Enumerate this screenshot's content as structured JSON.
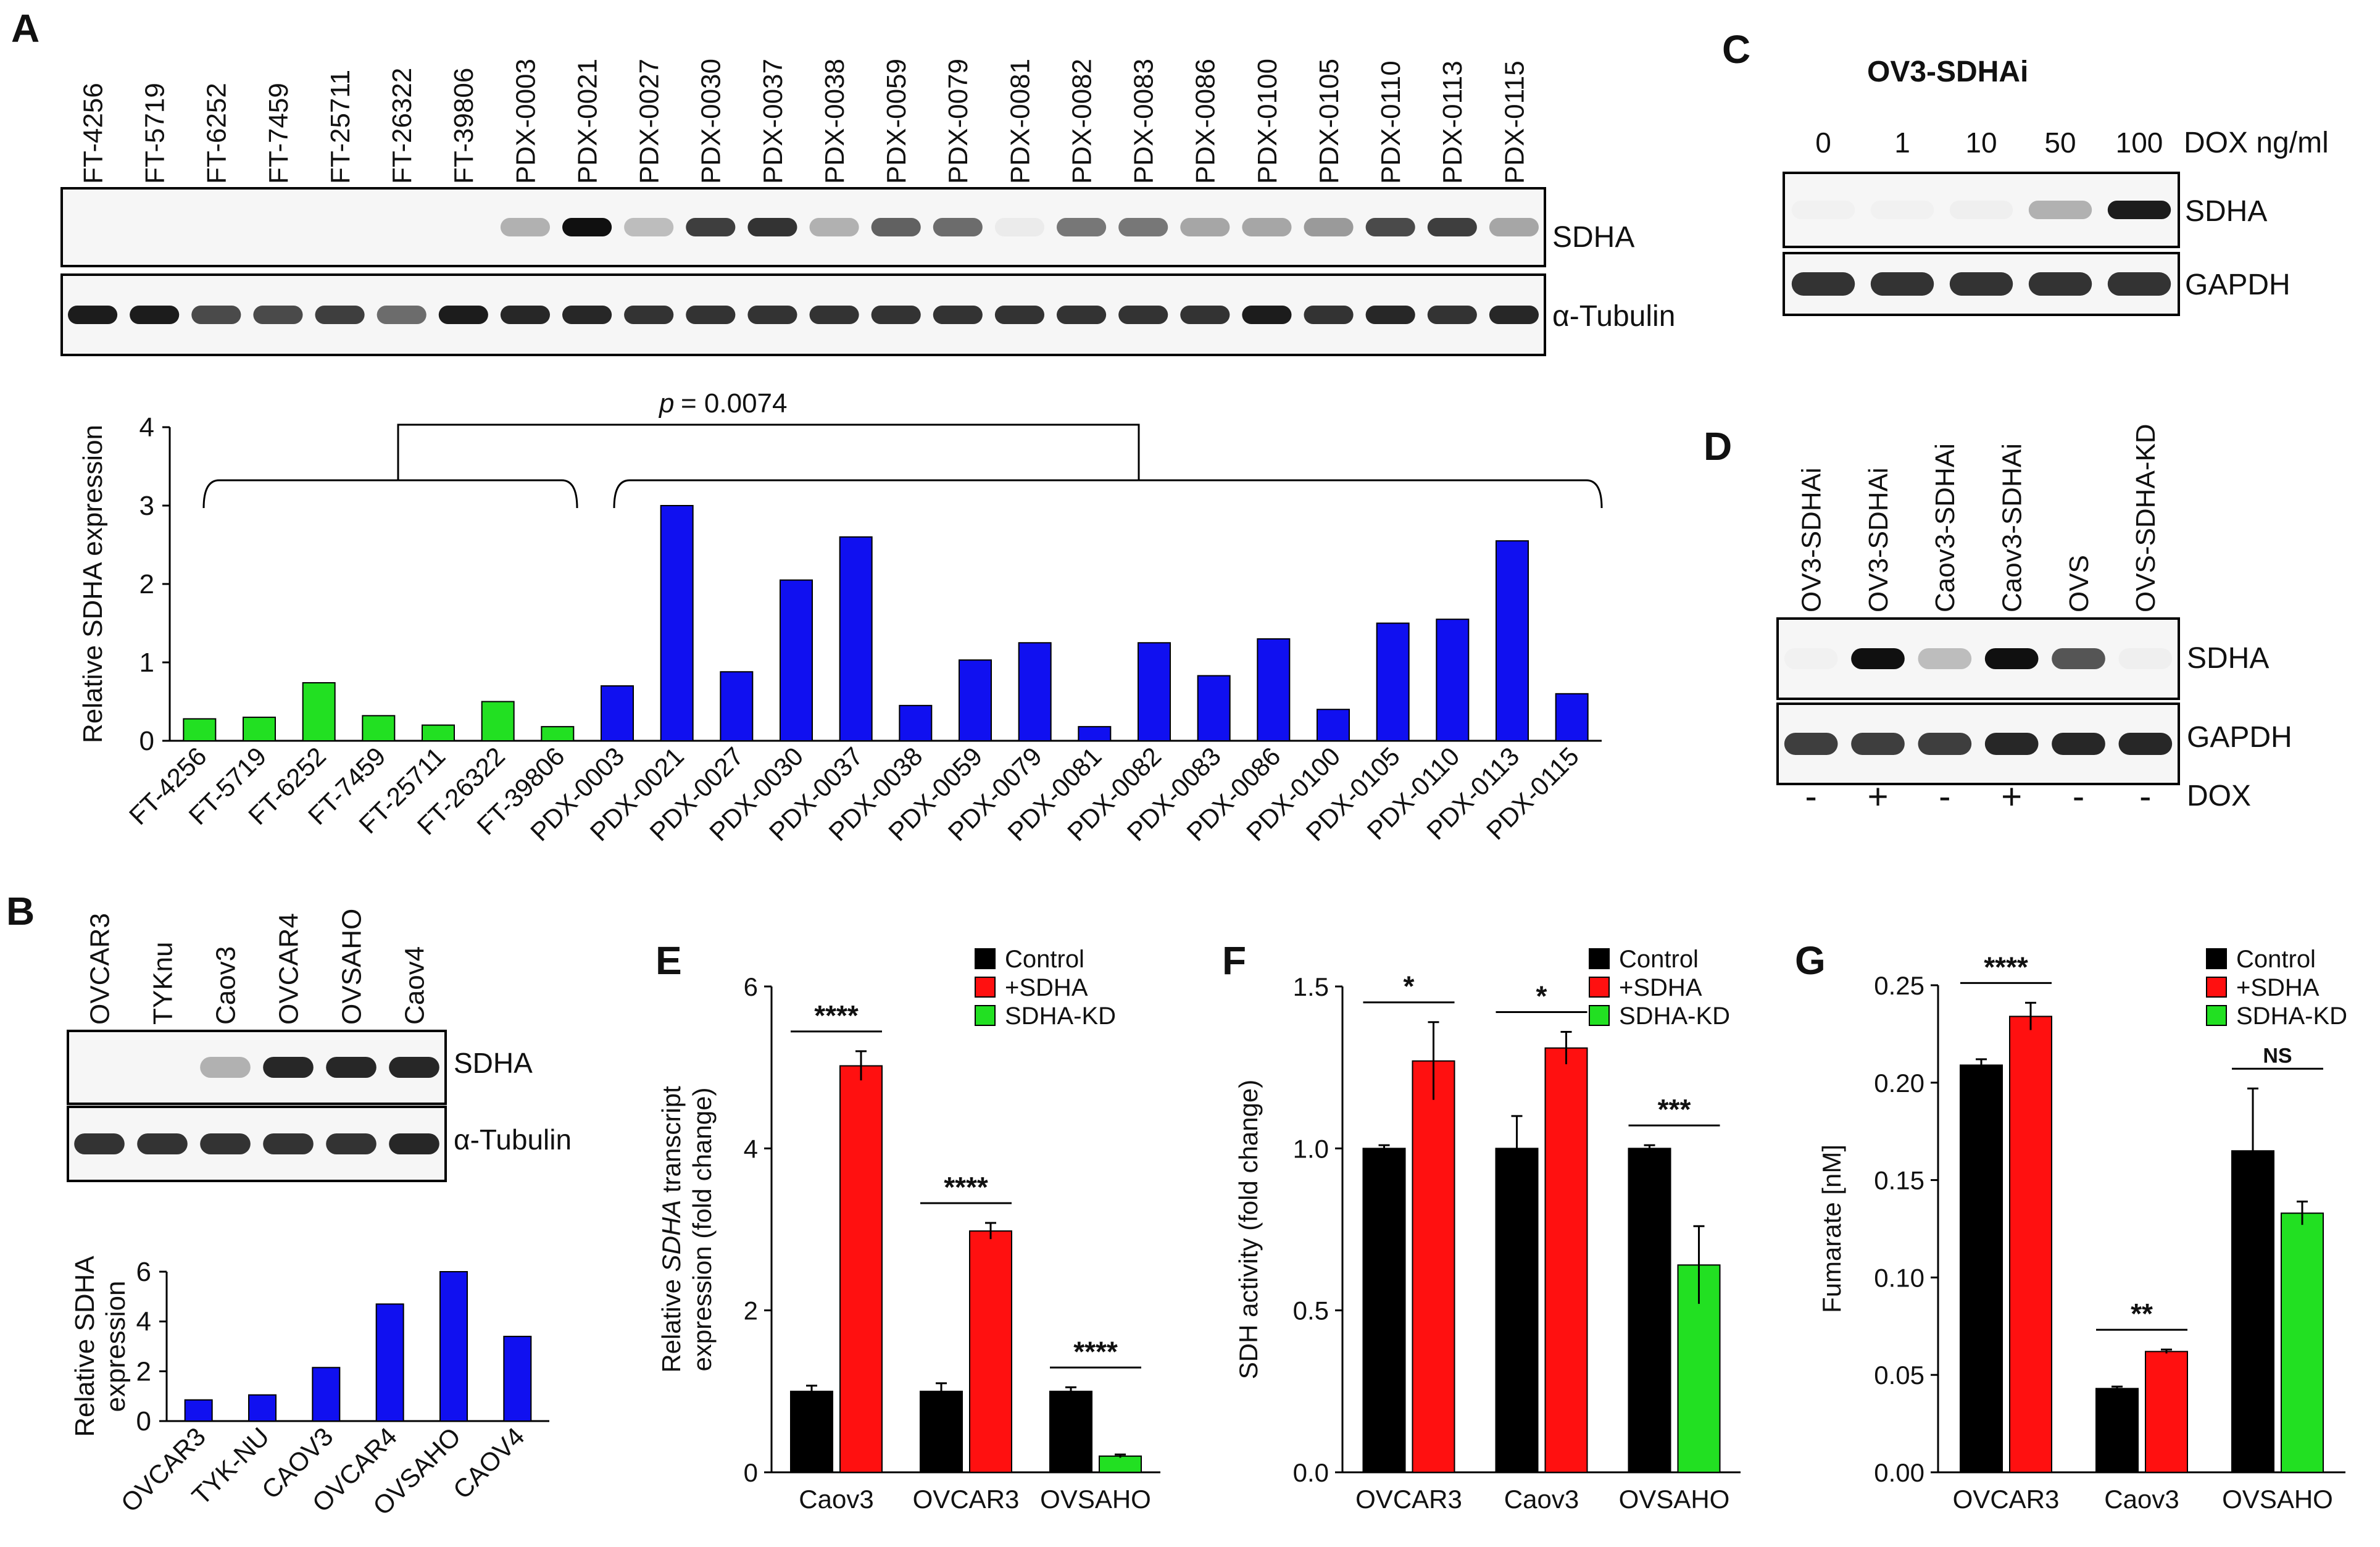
{
  "panel_letters": [
    "A",
    "B",
    "C",
    "D",
    "E",
    "F",
    "G"
  ],
  "colors": {
    "green": "#22e022",
    "blue": "#1010f0",
    "black": "#000000",
    "red": "#ff1010",
    "band_dark": "#111111",
    "blot_bg": "#f6f6f6"
  },
  "panelA": {
    "lanes": [
      "FT-4256",
      "FT-5719",
      "FT-6252",
      "FT-7459",
      "FT-25711",
      "FT-26322",
      "FT-39806",
      "PDX-0003",
      "PDX-0021",
      "PDX-0027",
      "PDX-0030",
      "PDX-0037",
      "PDX-0038",
      "PDX-0059",
      "PDX-0079",
      "PDX-0081",
      "PDX-0082",
      "PDX-0083",
      "PDX-0086",
      "PDX-0100",
      "PDX-0105",
      "PDX-0110",
      "PDX-0113",
      "PDX-0115"
    ],
    "blot_labels": [
      "SDHA",
      "α-Tubulin"
    ],
    "sdha_band": [
      0,
      0,
      0,
      0,
      0,
      0,
      0,
      0.3,
      1.0,
      0.25,
      0.8,
      0.85,
      0.3,
      0.65,
      0.6,
      0.05,
      0.55,
      0.55,
      0.35,
      0.35,
      0.4,
      0.75,
      0.8,
      0.35
    ],
    "tubulin_band": [
      0.95,
      0.95,
      0.75,
      0.75,
      0.8,
      0.6,
      0.95,
      0.9,
      0.9,
      0.85,
      0.85,
      0.85,
      0.85,
      0.85,
      0.85,
      0.85,
      0.85,
      0.85,
      0.85,
      0.95,
      0.85,
      0.9,
      0.85,
      0.9
    ],
    "p_label": "p",
    "p_value": "= 0.0074"
  },
  "panelC": {
    "title": "OV3-SDHAi",
    "doses": [
      "0",
      "1",
      "10",
      "50",
      "100"
    ],
    "dose_unit": "DOX ng/ml",
    "blot_labels": [
      "SDHA",
      "GAPDH"
    ],
    "sdha_band": [
      0.02,
      0.02,
      0.03,
      0.3,
      0.95
    ],
    "gapdh_band": [
      0.85,
      0.85,
      0.85,
      0.85,
      0.85
    ]
  },
  "panelD": {
    "lanes": [
      "OV3-SDHAi",
      "OV3-SDHAi",
      "Caov3-SDHAi",
      "Caov3-SDHAi",
      "OVS",
      "OVS-SDHA-KD"
    ],
    "blot_labels": [
      "SDHA",
      "GAPDH"
    ],
    "dox": [
      "-",
      "+",
      "-",
      "+",
      "-",
      "-"
    ],
    "dox_label": "DOX",
    "sdha_band": [
      0.02,
      1.0,
      0.25,
      1.0,
      0.7,
      0.03
    ],
    "gapdh_band": [
      0.8,
      0.8,
      0.8,
      0.9,
      0.9,
      0.9
    ]
  },
  "panelB": {
    "lanes": [
      "OVCAR3",
      "TYKnu",
      "Caov3",
      "OVCAR4",
      "OVSAHO",
      "Caov4"
    ],
    "blot_labels": [
      "SDHA",
      "α-Tubulin"
    ],
    "sdha_band": [
      0.0,
      0.0,
      0.3,
      0.9,
      0.9,
      0.9
    ],
    "tubulin_band": [
      0.85,
      0.85,
      0.85,
      0.85,
      0.85,
      0.9
    ]
  },
  "chart_data": [
    {
      "id": "A",
      "type": "bar",
      "categories": [
        "FT-4256",
        "FT-5719",
        "FT-6252",
        "FT-7459",
        "FT-25711",
        "FT-26322",
        "FT-39806",
        "PDX-0003",
        "PDX-0021",
        "PDX-0027",
        "PDX-0030",
        "PDX-0037",
        "PDX-0038",
        "PDX-0059",
        "PDX-0079",
        "PDX-0081",
        "PDX-0082",
        "PDX-0083",
        "PDX-0086",
        "PDX-0100",
        "PDX-0105",
        "PDX-0110",
        "PDX-0113",
        "PDX-0115"
      ],
      "values": [
        0.28,
        0.3,
        0.74,
        0.32,
        0.2,
        0.5,
        0.18,
        0.7,
        3.0,
        0.88,
        2.05,
        2.6,
        0.45,
        1.03,
        1.25,
        0.18,
        1.25,
        0.83,
        1.3,
        0.4,
        1.5,
        1.55,
        2.55,
        0.6
      ],
      "groups": [
        7,
        17
      ],
      "ylabel": "Relative SDHA expression",
      "ylim": [
        0,
        4
      ],
      "yticks": [
        "0",
        "1",
        "2",
        "3",
        "4"
      ]
    },
    {
      "id": "B",
      "type": "bar",
      "categories": [
        "OVCAR3",
        "TYK-NU",
        "CAOV3",
        "OVCAR4",
        "OVSAHO",
        "CAOV4"
      ],
      "values": [
        0.85,
        1.05,
        2.15,
        4.7,
        6.0,
        3.4
      ],
      "ylabel": [
        "Relative SDHA",
        "expression"
      ],
      "ylim": [
        0,
        6
      ],
      "yticks": [
        "0",
        "2",
        "4",
        "6"
      ]
    },
    {
      "id": "E",
      "type": "bar",
      "categories": [
        "Caov3",
        "OVCAR3",
        "OVSAHO"
      ],
      "legend": [
        "Control",
        "+SDHA",
        "SDHA-KD"
      ],
      "groups": [
        {
          "bars": [
            {
              "s": 0,
              "v": 1.0,
              "e": 0.07
            },
            {
              "s": 1,
              "v": 5.02,
              "e": 0.18
            }
          ],
          "sig": "****"
        },
        {
          "bars": [
            {
              "s": 0,
              "v": 1.0,
              "e": 0.1
            },
            {
              "s": 1,
              "v": 2.98,
              "e": 0.1
            }
          ],
          "sig": "****"
        },
        {
          "bars": [
            {
              "s": 0,
              "v": 1.0,
              "e": 0.05
            },
            {
              "s": 2,
              "v": 0.2,
              "e": 0.02
            }
          ],
          "sig": "****"
        }
      ],
      "ylabel_parts": [
        "Relative ",
        "SDHA",
        " transcript",
        "expression (fold change)"
      ],
      "ylim": [
        0,
        6
      ],
      "yticks": [
        "0",
        "2",
        "4",
        "6"
      ]
    },
    {
      "id": "F",
      "type": "bar",
      "categories": [
        "OVCAR3",
        "Caov3",
        "OVSAHO"
      ],
      "legend": [
        "Control",
        "+SDHA",
        "SDHA-KD"
      ],
      "groups": [
        {
          "bars": [
            {
              "s": 0,
              "v": 1.0,
              "e": 0.01
            },
            {
              "s": 1,
              "v": 1.27,
              "e": 0.12
            }
          ],
          "sig": "*"
        },
        {
          "bars": [
            {
              "s": 0,
              "v": 1.0,
              "e": 0.1
            },
            {
              "s": 1,
              "v": 1.31,
              "e": 0.05
            }
          ],
          "sig": "*"
        },
        {
          "bars": [
            {
              "s": 0,
              "v": 1.0,
              "e": 0.01
            },
            {
              "s": 2,
              "v": 0.64,
              "e": 0.12
            }
          ],
          "sig": "***"
        }
      ],
      "ylabel": "SDH activity (fold change)",
      "ylim": [
        0,
        1.5
      ],
      "yticks": [
        "0.0",
        "0.5",
        "1.0",
        "1.5"
      ]
    },
    {
      "id": "G",
      "type": "bar",
      "categories": [
        "OVCAR3",
        "Caov3",
        "OVSAHO"
      ],
      "legend": [
        "Control",
        "+SDHA",
        "SDHA-KD"
      ],
      "groups": [
        {
          "bars": [
            {
              "s": 0,
              "v": 0.209,
              "e": 0.003
            },
            {
              "s": 1,
              "v": 0.234,
              "e": 0.007
            }
          ],
          "sig": "****"
        },
        {
          "bars": [
            {
              "s": 0,
              "v": 0.043,
              "e": 0.001
            },
            {
              "s": 1,
              "v": 0.062,
              "e": 0.001
            }
          ],
          "sig": "**"
        },
        {
          "bars": [
            {
              "s": 0,
              "v": 0.165,
              "e": 0.032
            },
            {
              "s": 2,
              "v": 0.133,
              "e": 0.006
            }
          ],
          "sig": "NS"
        }
      ],
      "ylabel": "Fumarate [nM]",
      "ylim": [
        0,
        0.25
      ],
      "yticks": [
        "0.00",
        "0.05",
        "0.10",
        "0.15",
        "0.20",
        "0.25"
      ]
    }
  ]
}
